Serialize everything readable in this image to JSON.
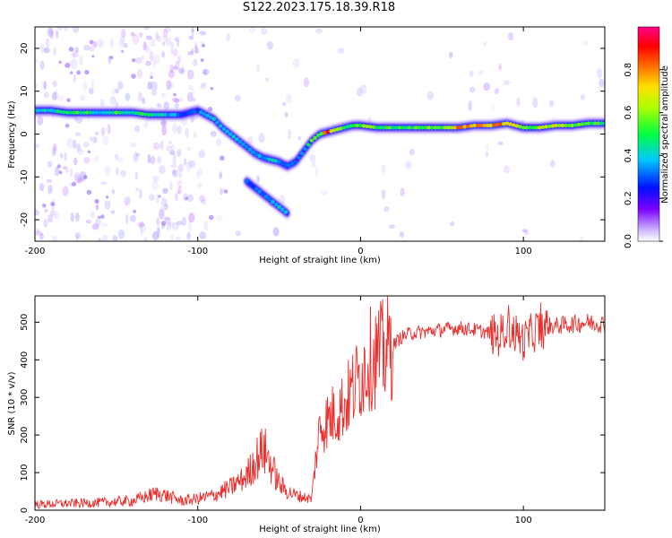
{
  "title": "S122.2023.175.18.39.R18",
  "colors": {
    "snr_line": "#e8302e",
    "background": "#ffffff"
  },
  "chart_data": [
    {
      "type": "heatmap",
      "xlabel": "Height of straight line (km)",
      "ylabel": "Frequency (Hz)",
      "xlim": [
        -200,
        150
      ],
      "ylim": [
        -25,
        25
      ],
      "xticks": [
        -200,
        -100,
        0,
        100
      ],
      "yticks": [
        -20,
        -10,
        0,
        10,
        20
      ],
      "colorbar": {
        "label": "Normalized spectral amplitude",
        "range": [
          0.0,
          1.0
        ],
        "ticks": [
          0.0,
          0.2,
          0.4,
          0.6,
          0.8
        ],
        "colormap": "rainbow"
      },
      "ridges": [
        {
          "x": [
            -200,
            -190,
            -180,
            -170,
            -160,
            -150,
            -140,
            -130,
            -120,
            -110,
            -100,
            -95,
            -90,
            -85,
            -80,
            -75,
            -70,
            -65,
            -60,
            -55,
            -50,
            -45,
            -40,
            -35,
            -30,
            -25,
            -20,
            -15,
            -10,
            -5,
            0,
            10,
            20,
            30,
            40,
            50,
            60,
            70,
            80,
            90,
            100,
            110,
            120,
            130,
            140,
            150
          ],
          "y": [
            5.5,
            5.5,
            5.0,
            5.0,
            5.0,
            5.0,
            5.0,
            4.5,
            4.5,
            4.5,
            5.5,
            4.5,
            3.5,
            1.5,
            0.0,
            -1.5,
            -3.0,
            -4.5,
            -5.5,
            -6.0,
            -6.5,
            -7.5,
            -6.5,
            -4.0,
            -1.5,
            0.0,
            0.5,
            1.0,
            1.5,
            2.0,
            2.0,
            1.5,
            1.5,
            1.5,
            1.5,
            1.5,
            1.5,
            2.0,
            2.0,
            2.5,
            1.5,
            1.5,
            2.0,
            2.0,
            2.5,
            2.5
          ],
          "amplitude": [
            0.4,
            0.4,
            0.5,
            0.5,
            0.4,
            0.5,
            0.45,
            0.5,
            0.4,
            0.3,
            0.3,
            0.35,
            0.4,
            0.35,
            0.35,
            0.4,
            0.35,
            0.4,
            0.35,
            0.4,
            0.35,
            0.35,
            0.3,
            0.35,
            0.5,
            0.6,
            0.8,
            0.7,
            0.5,
            0.5,
            0.55,
            0.55,
            0.5,
            0.5,
            0.55,
            0.6,
            0.75,
            0.7,
            0.8,
            0.75,
            0.55,
            0.6,
            0.7,
            0.55,
            0.5,
            0.5
          ]
        },
        {
          "x": [
            -70,
            -65,
            -60,
            -55,
            -50,
            -45
          ],
          "y": [
            -11.0,
            -12.5,
            -14.0,
            -15.5,
            -17.0,
            -18.5
          ],
          "amplitude": [
            0.3,
            0.3,
            0.35,
            0.35,
            0.4,
            0.4
          ]
        }
      ]
    },
    {
      "type": "line",
      "xlabel": "Height of straight line (km)",
      "ylabel": "SNR (10 * v/v)",
      "xlim": [
        -200,
        150
      ],
      "ylim": [
        0,
        570
      ],
      "xticks": [
        -200,
        -100,
        0,
        100
      ],
      "yticks": [
        0,
        100,
        200,
        300,
        400,
        500
      ],
      "series": [
        {
          "x": [
            -200,
            -180,
            -160,
            -140,
            -125,
            -120,
            -110,
            -100,
            -90,
            -80,
            -70,
            -65,
            -60,
            -58,
            -55,
            -50,
            -45,
            -40,
            -35,
            -30,
            -28,
            -25,
            -20,
            -15,
            -10,
            -5,
            0,
            5,
            10,
            15,
            20,
            25,
            30,
            40,
            50,
            60,
            70,
            80,
            85,
            90,
            92,
            95,
            100,
            105,
            108,
            110,
            115,
            120,
            130,
            140,
            150
          ],
          "y": [
            15,
            18,
            20,
            25,
            45,
            40,
            25,
            30,
            40,
            60,
            90,
            130,
            160,
            150,
            120,
            70,
            50,
            40,
            35,
            30,
            120,
            220,
            240,
            260,
            280,
            320,
            360,
            400,
            410,
            420,
            440,
            460,
            470,
            475,
            480,
            485,
            480,
            470,
            460,
            500,
            480,
            470,
            450,
            470,
            480,
            480,
            490,
            490,
            495,
            500,
            495
          ]
        }
      ]
    }
  ]
}
